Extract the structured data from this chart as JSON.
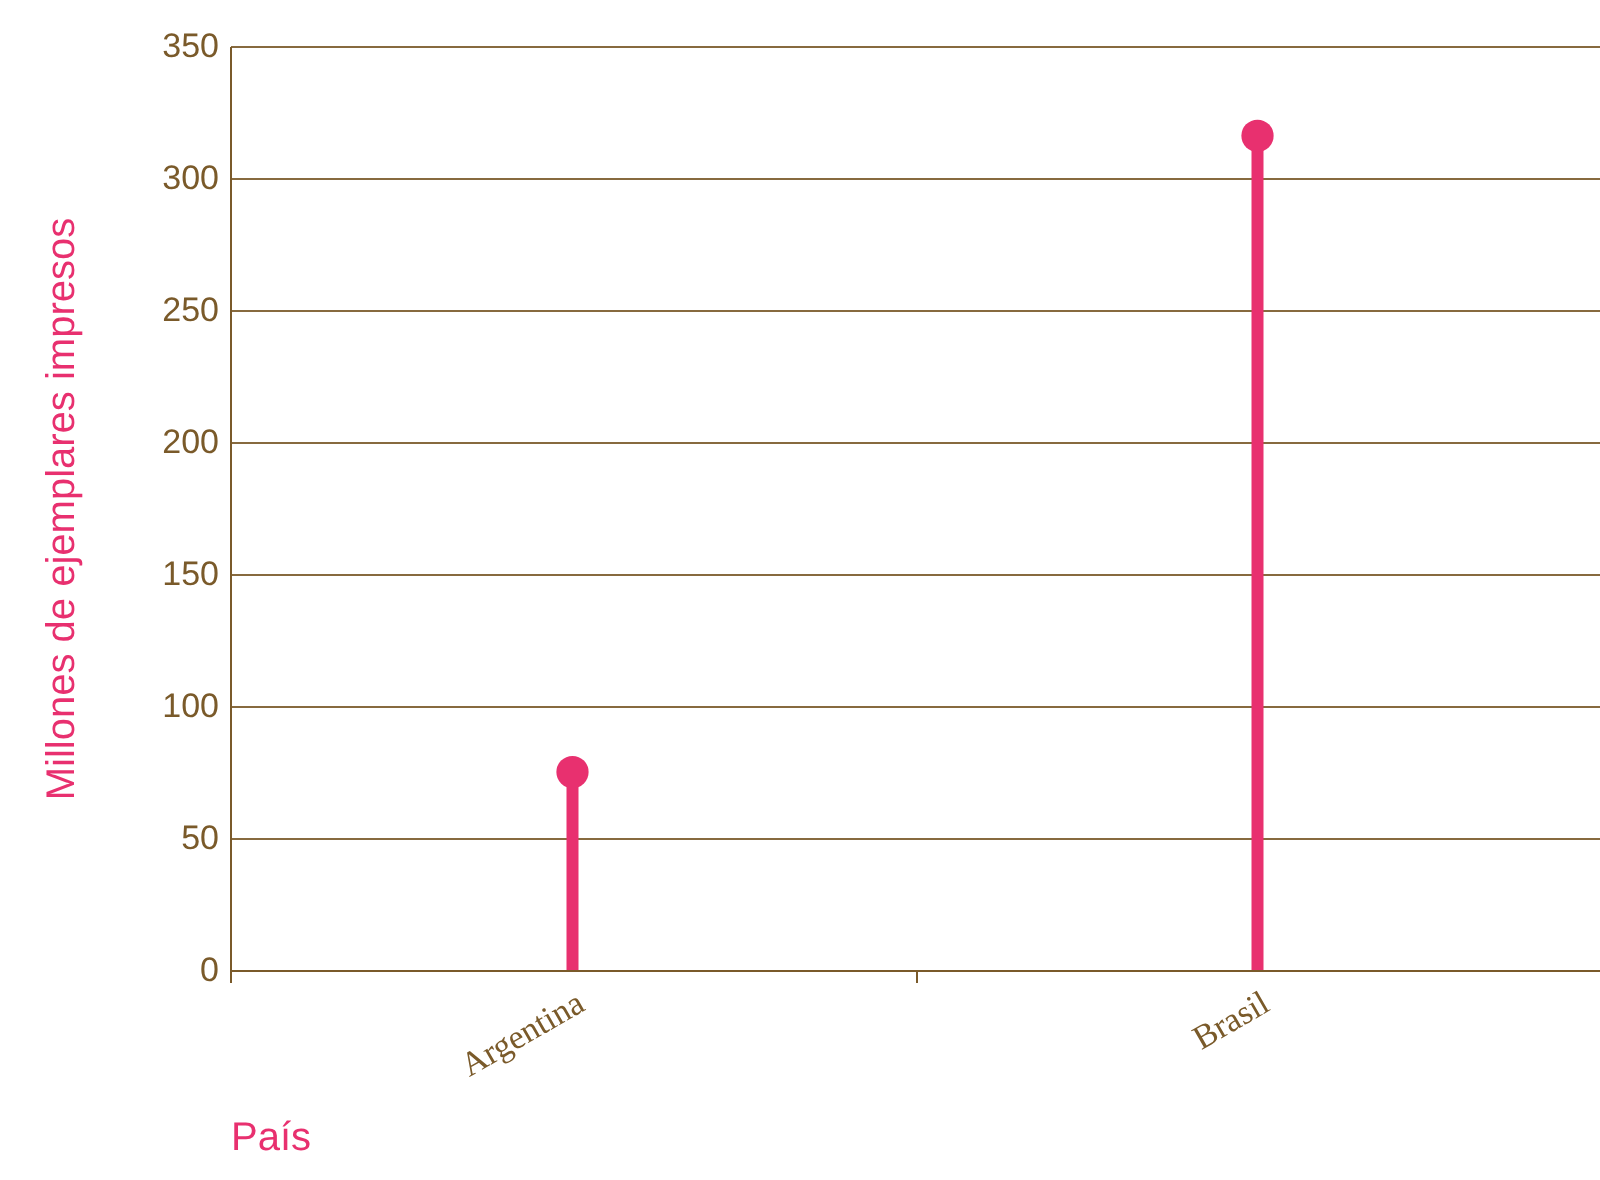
{
  "chart_data": {
    "type": "lollipop",
    "xlabel": "País",
    "ylabel": "Millones de ejemplares impresos",
    "categories": [
      "Argentina",
      "Brasil"
    ],
    "values": [
      75,
      316
    ],
    "color": "#e8306f",
    "marker": "circle",
    "ylim": [
      0,
      350
    ],
    "yticks": [
      0,
      50,
      100,
      150,
      200,
      250,
      300,
      350
    ],
    "grid": "y"
  }
}
